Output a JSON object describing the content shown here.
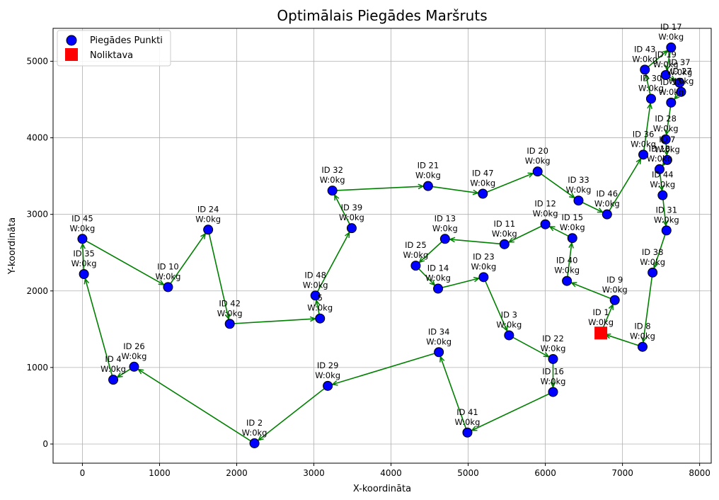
{
  "chart_data": {
    "type": "scatter",
    "title": "Optimālais Piegādes Maršruts",
    "xlabel": "X-koordināta",
    "ylabel": "Y-koordināta",
    "xlim": [
      -380,
      8150
    ],
    "ylim": [
      -250,
      5430
    ],
    "xticks": [
      0,
      1000,
      2000,
      3000,
      4000,
      5000,
      6000,
      7000,
      8000
    ],
    "yticks": [
      0,
      1000,
      2000,
      3000,
      4000,
      5000
    ],
    "grid": true,
    "legend_position": "top-left",
    "colors": {
      "points": "#0000ff",
      "point_edge": "#000000",
      "depot": "#ff0000",
      "route": "#008000",
      "grid": "#b0b0b0"
    },
    "legend": [
      {
        "label": "Piegādes Punkti",
        "marker": "circle"
      },
      {
        "label": "Noliktava",
        "marker": "square"
      }
    ],
    "depot": {
      "x": 6720,
      "y": 1450
    },
    "points": [
      {
        "id": "1",
        "label": "ID 1",
        "weight": "W:0kg",
        "x": 6720,
        "y": 1450
      },
      {
        "id": "2",
        "label": "ID 2",
        "weight": "W:0kg",
        "x": 2230,
        "y": 10
      },
      {
        "id": "3",
        "label": "ID 3",
        "weight": "W:0kg",
        "x": 5530,
        "y": 1420
      },
      {
        "id": "4",
        "label": "ID 4",
        "weight": "W:0kg",
        "x": 400,
        "y": 840
      },
      {
        "id": "5",
        "label": "5",
        "weight": "W:0kg",
        "x": 3080,
        "y": 1640
      },
      {
        "id": "7",
        "label": "ID 7",
        "weight": "W:0kg",
        "x": 7580,
        "y": 3710
      },
      {
        "id": "8",
        "label": "ID 8",
        "weight": "W:0kg",
        "x": 7260,
        "y": 1270
      },
      {
        "id": "9",
        "label": "ID 9",
        "weight": "W:0kg",
        "x": 6900,
        "y": 1880
      },
      {
        "id": "10",
        "label": "ID 10",
        "weight": "W:0kg",
        "x": 1110,
        "y": 2050
      },
      {
        "id": "11",
        "label": "ID 11",
        "weight": "W:0kg",
        "x": 5470,
        "y": 2610
      },
      {
        "id": "12",
        "label": "ID 12",
        "weight": "W:0kg",
        "x": 6000,
        "y": 2870
      },
      {
        "id": "13",
        "label": "ID 13",
        "weight": "W:0kg",
        "x": 4700,
        "y": 2680
      },
      {
        "id": "14",
        "label": "ID 14",
        "weight": "W:0kg",
        "x": 4610,
        "y": 2030
      },
      {
        "id": "15",
        "label": "ID 15",
        "weight": "W:0kg",
        "x": 6350,
        "y": 2690
      },
      {
        "id": "16",
        "label": "ID 16",
        "weight": "W:0kg",
        "x": 6100,
        "y": 680
      },
      {
        "id": "17",
        "label": "ID 17",
        "weight": "W:0kg",
        "x": 7630,
        "y": 5180
      },
      {
        "id": "18",
        "label": "ID 18",
        "weight": "W:0kg",
        "x": 7480,
        "y": 3590
      },
      {
        "id": "19",
        "label": "ID 19",
        "weight": "W:0kg",
        "x": 7560,
        "y": 4820
      },
      {
        "id": "20",
        "label": "ID 20",
        "weight": "W:0kg",
        "x": 5900,
        "y": 3560
      },
      {
        "id": "21",
        "label": "ID 21",
        "weight": "W:0kg",
        "x": 4480,
        "y": 3370
      },
      {
        "id": "22",
        "label": "ID 22",
        "weight": "W:0kg",
        "x": 6100,
        "y": 1110
      },
      {
        "id": "23",
        "label": "ID 23",
        "weight": "W:0kg",
        "x": 5200,
        "y": 2180
      },
      {
        "id": "24",
        "label": "ID 24",
        "weight": "W:0kg",
        "x": 1630,
        "y": 2800
      },
      {
        "id": "25",
        "label": "ID 25",
        "weight": "W:0kg",
        "x": 4320,
        "y": 2330
      },
      {
        "id": "26",
        "label": "ID 26",
        "weight": "W:0kg",
        "x": 670,
        "y": 1010
      },
      {
        "id": "27",
        "label": "ID 27",
        "weight": "W:0kg",
        "x": 7760,
        "y": 4600
      },
      {
        "id": "28",
        "label": "ID 28",
        "weight": "W:0kg",
        "x": 7560,
        "y": 3980
      },
      {
        "id": "29",
        "label": "ID 29",
        "weight": "W:0kg",
        "x": 3180,
        "y": 760
      },
      {
        "id": "30",
        "label": "ID 30",
        "weight": "W:0kg",
        "x": 7370,
        "y": 4510
      },
      {
        "id": "31",
        "label": "ID 31",
        "weight": "W:0kg",
        "x": 7570,
        "y": 2790
      },
      {
        "id": "32",
        "label": "ID 32",
        "weight": "W:0kg",
        "x": 3240,
        "y": 3310
      },
      {
        "id": "33",
        "label": "ID 33",
        "weight": "W:0kg",
        "x": 6430,
        "y": 3180
      },
      {
        "id": "34",
        "label": "ID 34",
        "weight": "W:0kg",
        "x": 4620,
        "y": 1200
      },
      {
        "id": "35",
        "label": "ID 35",
        "weight": "W:0kg",
        "x": 20,
        "y": 2220
      },
      {
        "id": "36",
        "label": "ID 36",
        "weight": "W:0kg",
        "x": 7270,
        "y": 3780
      },
      {
        "id": "37",
        "label": "ID 37",
        "weight": "W:0kg",
        "x": 7740,
        "y": 4720
      },
      {
        "id": "38",
        "label": "ID 38",
        "weight": "W:0kg",
        "x": 7390,
        "y": 2240
      },
      {
        "id": "39",
        "label": "ID 39",
        "weight": "W:0kg",
        "x": 3490,
        "y": 2820
      },
      {
        "id": "40",
        "label": "ID 40",
        "weight": "W:0kg",
        "x": 6280,
        "y": 2130
      },
      {
        "id": "41",
        "label": "ID 41",
        "weight": "W:0kg",
        "x": 4990,
        "y": 150
      },
      {
        "id": "42",
        "label": "ID 42",
        "weight": "W:0kg",
        "x": 1910,
        "y": 1570
      },
      {
        "id": "43",
        "label": "ID 43",
        "weight": "W:0kg",
        "x": 7290,
        "y": 4890
      },
      {
        "id": "44",
        "label": "ID 44",
        "weight": "W:0kg",
        "x": 7520,
        "y": 3250
      },
      {
        "id": "45",
        "label": "ID 45",
        "weight": "W:0kg",
        "x": 0,
        "y": 2680
      },
      {
        "id": "46",
        "label": "ID 46",
        "weight": "W:0kg",
        "x": 6800,
        "y": 3000
      },
      {
        "id": "47",
        "label": "ID 47",
        "weight": "W:0kg",
        "x": 5190,
        "y": 3270
      },
      {
        "id": "48",
        "label": "ID 48",
        "weight": "W:0kg",
        "x": 3020,
        "y": 1940
      },
      {
        "id": "50",
        "label": "ID 50",
        "weight": "W:0kg",
        "x": 7630,
        "y": 4460
      }
    ],
    "route": [
      "1",
      "9",
      "40",
      "15",
      "12",
      "11",
      "13",
      "25",
      "14",
      "23",
      "3",
      "22",
      "16",
      "41",
      "34",
      "29",
      "2",
      "26",
      "4",
      "35",
      "45",
      "10",
      "24",
      "42",
      "5",
      "48",
      "39",
      "32",
      "21",
      "47",
      "20",
      "33",
      "46",
      "36",
      "30",
      "43",
      "17",
      "19",
      "37",
      "27",
      "50",
      "28",
      "7",
      "18",
      "44",
      "31",
      "38",
      "8",
      "1"
    ]
  }
}
